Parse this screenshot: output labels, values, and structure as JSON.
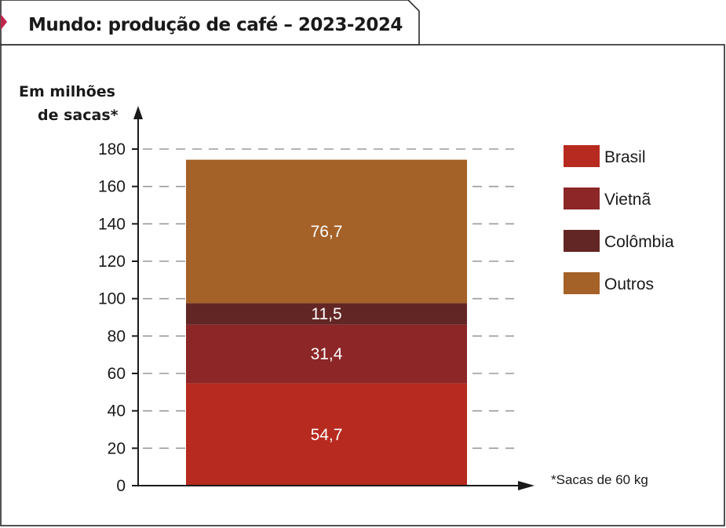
{
  "chart_data": {
    "type": "bar",
    "stacked": true,
    "title": "Mundo: produção de café – 2023-2024",
    "ylabel_line1": "Em milhões",
    "ylabel_line2": "de sacas*",
    "ylim": [
      0,
      180
    ],
    "yticks": [
      0,
      20,
      40,
      60,
      80,
      100,
      120,
      140,
      160,
      180
    ],
    "grid": "dashed horizontal",
    "legend_position": "right",
    "note": "*Sacas de 60 kg",
    "series": [
      {
        "name": "Brasil",
        "value": 54.7,
        "label": "54,7",
        "color": "#b72a1f"
      },
      {
        "name": "Vietnã",
        "value": 31.4,
        "label": "31,4",
        "color": "#8c2627"
      },
      {
        "name": "Colômbia",
        "value": 11.5,
        "label": "11,5",
        "color": "#622624"
      },
      {
        "name": "Outros",
        "value": 76.7,
        "label": "76,7",
        "color": "#a46128"
      }
    ]
  }
}
